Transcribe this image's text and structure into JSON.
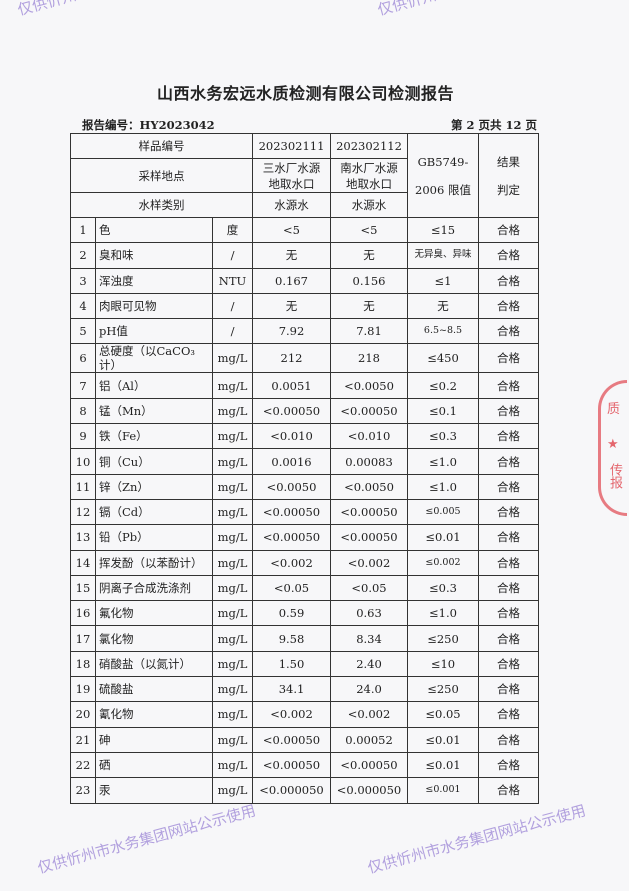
{
  "title": "山西水务宏远水质检测有限公司检测报告",
  "report_no": "报告编号：HY2023042",
  "page": "第 2 页共 12 页",
  "header": {
    "sample_no_label": "样品编号",
    "sample_no": [
      "202302111",
      "202302112"
    ],
    "site_label": "采样地点",
    "sites": [
      "三水厂水源地取水口",
      "南水厂水源地取水口"
    ],
    "type_label": "水样类别",
    "types": [
      "水源水",
      "水源水"
    ],
    "limit_label": "GB5749-2006 限值",
    "result_label": "结果判定"
  },
  "rows": [
    {
      "n": "1",
      "item": "色",
      "unit": "度",
      "a": "<5",
      "b": "<5",
      "limit": "≤15",
      "res": "合格"
    },
    {
      "n": "2",
      "item": "臭和味",
      "unit": "/",
      "a": "无",
      "b": "无",
      "limit": "无异臭、异味",
      "res": "合格"
    },
    {
      "n": "3",
      "item": "浑浊度",
      "unit": "NTU",
      "a": "0.167",
      "b": "0.156",
      "limit": "≤1",
      "res": "合格"
    },
    {
      "n": "4",
      "item": "肉眼可见物",
      "unit": "/",
      "a": "无",
      "b": "无",
      "limit": "无",
      "res": "合格"
    },
    {
      "n": "5",
      "item": "pH值",
      "unit": "/",
      "a": "7.92",
      "b": "7.81",
      "limit": "6.5~8.5",
      "res": "合格"
    },
    {
      "n": "6",
      "item": "总硬度（以CaCO₃计）",
      "unit": "mg/L",
      "a": "212",
      "b": "218",
      "limit": "≤450",
      "res": "合格"
    },
    {
      "n": "7",
      "item": "铝（Al）",
      "unit": "mg/L",
      "a": "0.0051",
      "b": "<0.0050",
      "limit": "≤0.2",
      "res": "合格"
    },
    {
      "n": "8",
      "item": "锰（Mn）",
      "unit": "mg/L",
      "a": "<0.00050",
      "b": "<0.00050",
      "limit": "≤0.1",
      "res": "合格"
    },
    {
      "n": "9",
      "item": "铁（Fe）",
      "unit": "mg/L",
      "a": "<0.010",
      "b": "<0.010",
      "limit": "≤0.3",
      "res": "合格"
    },
    {
      "n": "10",
      "item": "铜（Cu）",
      "unit": "mg/L",
      "a": "0.0016",
      "b": "0.00083",
      "limit": "≤1.0",
      "res": "合格"
    },
    {
      "n": "11",
      "item": "锌（Zn）",
      "unit": "mg/L",
      "a": "<0.0050",
      "b": "<0.0050",
      "limit": "≤1.0",
      "res": "合格"
    },
    {
      "n": "12",
      "item": "镉（Cd）",
      "unit": "mg/L",
      "a": "<0.00050",
      "b": "<0.00050",
      "limit": "≤0.005",
      "res": "合格"
    },
    {
      "n": "13",
      "item": "铅（Pb）",
      "unit": "mg/L",
      "a": "<0.00050",
      "b": "<0.00050",
      "limit": "≤0.01",
      "res": "合格"
    },
    {
      "n": "14",
      "item": "挥发酚（以苯酚计）",
      "unit": "mg/L",
      "a": "<0.002",
      "b": "<0.002",
      "limit": "≤0.002",
      "res": "合格"
    },
    {
      "n": "15",
      "item": "阴离子合成洗涤剂",
      "unit": "mg/L",
      "a": "<0.05",
      "b": "<0.05",
      "limit": "≤0.3",
      "res": "合格"
    },
    {
      "n": "16",
      "item": "氟化物",
      "unit": "mg/L",
      "a": "0.59",
      "b": "0.63",
      "limit": "≤1.0",
      "res": "合格"
    },
    {
      "n": "17",
      "item": "氯化物",
      "unit": "mg/L",
      "a": "9.58",
      "b": "8.34",
      "limit": "≤250",
      "res": "合格"
    },
    {
      "n": "18",
      "item": "硝酸盐（以氮计）",
      "unit": "mg/L",
      "a": "1.50",
      "b": "2.40",
      "limit": "≤10",
      "res": "合格"
    },
    {
      "n": "19",
      "item": "硫酸盐",
      "unit": "mg/L",
      "a": "34.1",
      "b": "24.0",
      "limit": "≤250",
      "res": "合格"
    },
    {
      "n": "20",
      "item": "氰化物",
      "unit": "mg/L",
      "a": "<0.002",
      "b": "<0.002",
      "limit": "≤0.05",
      "res": "合格"
    },
    {
      "n": "21",
      "item": "砷",
      "unit": "mg/L",
      "a": "<0.00050",
      "b": "0.00052",
      "limit": "≤0.01",
      "res": "合格"
    },
    {
      "n": "22",
      "item": "硒",
      "unit": "mg/L",
      "a": "<0.00050",
      "b": "<0.00050",
      "limit": "≤0.01",
      "res": "合格"
    },
    {
      "n": "23",
      "item": "汞",
      "unit": "mg/L",
      "a": "<0.000050",
      "b": "<0.000050",
      "limit": "≤0.001",
      "res": "合格"
    }
  ],
  "watermark": "仅供忻州市水务集团网站公示使用",
  "seal_text": "传报",
  "colors": {
    "watermark": "#785ac8",
    "seal": "#dc2832"
  }
}
